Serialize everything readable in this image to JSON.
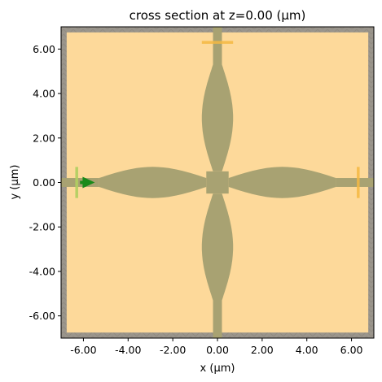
{
  "chart_data": {
    "type": "cross-section",
    "title": "cross section at z=0.00 (µm)",
    "xlabel": "x (µm)",
    "ylabel": "y (µm)",
    "xlim": [
      -7.0,
      7.0
    ],
    "ylim": [
      -7.0,
      7.0
    ],
    "xticks": [
      -6,
      -4,
      -2,
      0,
      2,
      4,
      6
    ],
    "yticks": [
      -6,
      -4,
      -2,
      0,
      2,
      4,
      6
    ],
    "xtick_labels": [
      "-6.00",
      "-4.00",
      "-2.00",
      "0.00",
      "2.00",
      "4.00",
      "6.00"
    ],
    "ytick_labels": [
      "-6.00",
      "-4.00",
      "-2.00",
      "0.00",
      "2.00",
      "4.00",
      "6.00"
    ],
    "background_medium_color": "#fdd99a",
    "structure_color": "#a8a272",
    "pml_color": "#9a958c",
    "simulation_domain": {
      "x": [
        -6.75,
        6.75
      ],
      "y": [
        -6.75,
        6.75
      ]
    },
    "waveguide_width": 0.4,
    "crossing_arms": [
      {
        "name": "left",
        "x": [
          -5.3,
          -0.5
        ],
        "max_width": 1.4
      },
      {
        "name": "right",
        "x": [
          0.5,
          5.3
        ],
        "max_width": 1.4
      },
      {
        "name": "top",
        "y": [
          0.5,
          5.3
        ],
        "max_width": 1.4
      },
      {
        "name": "bottom",
        "y": [
          -5.3,
          -0.5
        ],
        "max_width": 1.4
      }
    ],
    "source": {
      "type": "mode source",
      "x": -6.3,
      "y": 0.0,
      "span": 1.4,
      "direction": "+x",
      "color": "#b0d060",
      "arrow_color": "#1a8a1a"
    },
    "monitors": [
      {
        "name": "right monitor",
        "x": 6.3,
        "y": 0.0,
        "span": 1.4,
        "orientation": "vertical",
        "color": "#f5b942"
      },
      {
        "name": "top monitor",
        "x": 0.0,
        "y": 6.3,
        "span": 1.4,
        "orientation": "horizontal",
        "color": "#f5b942"
      }
    ]
  }
}
